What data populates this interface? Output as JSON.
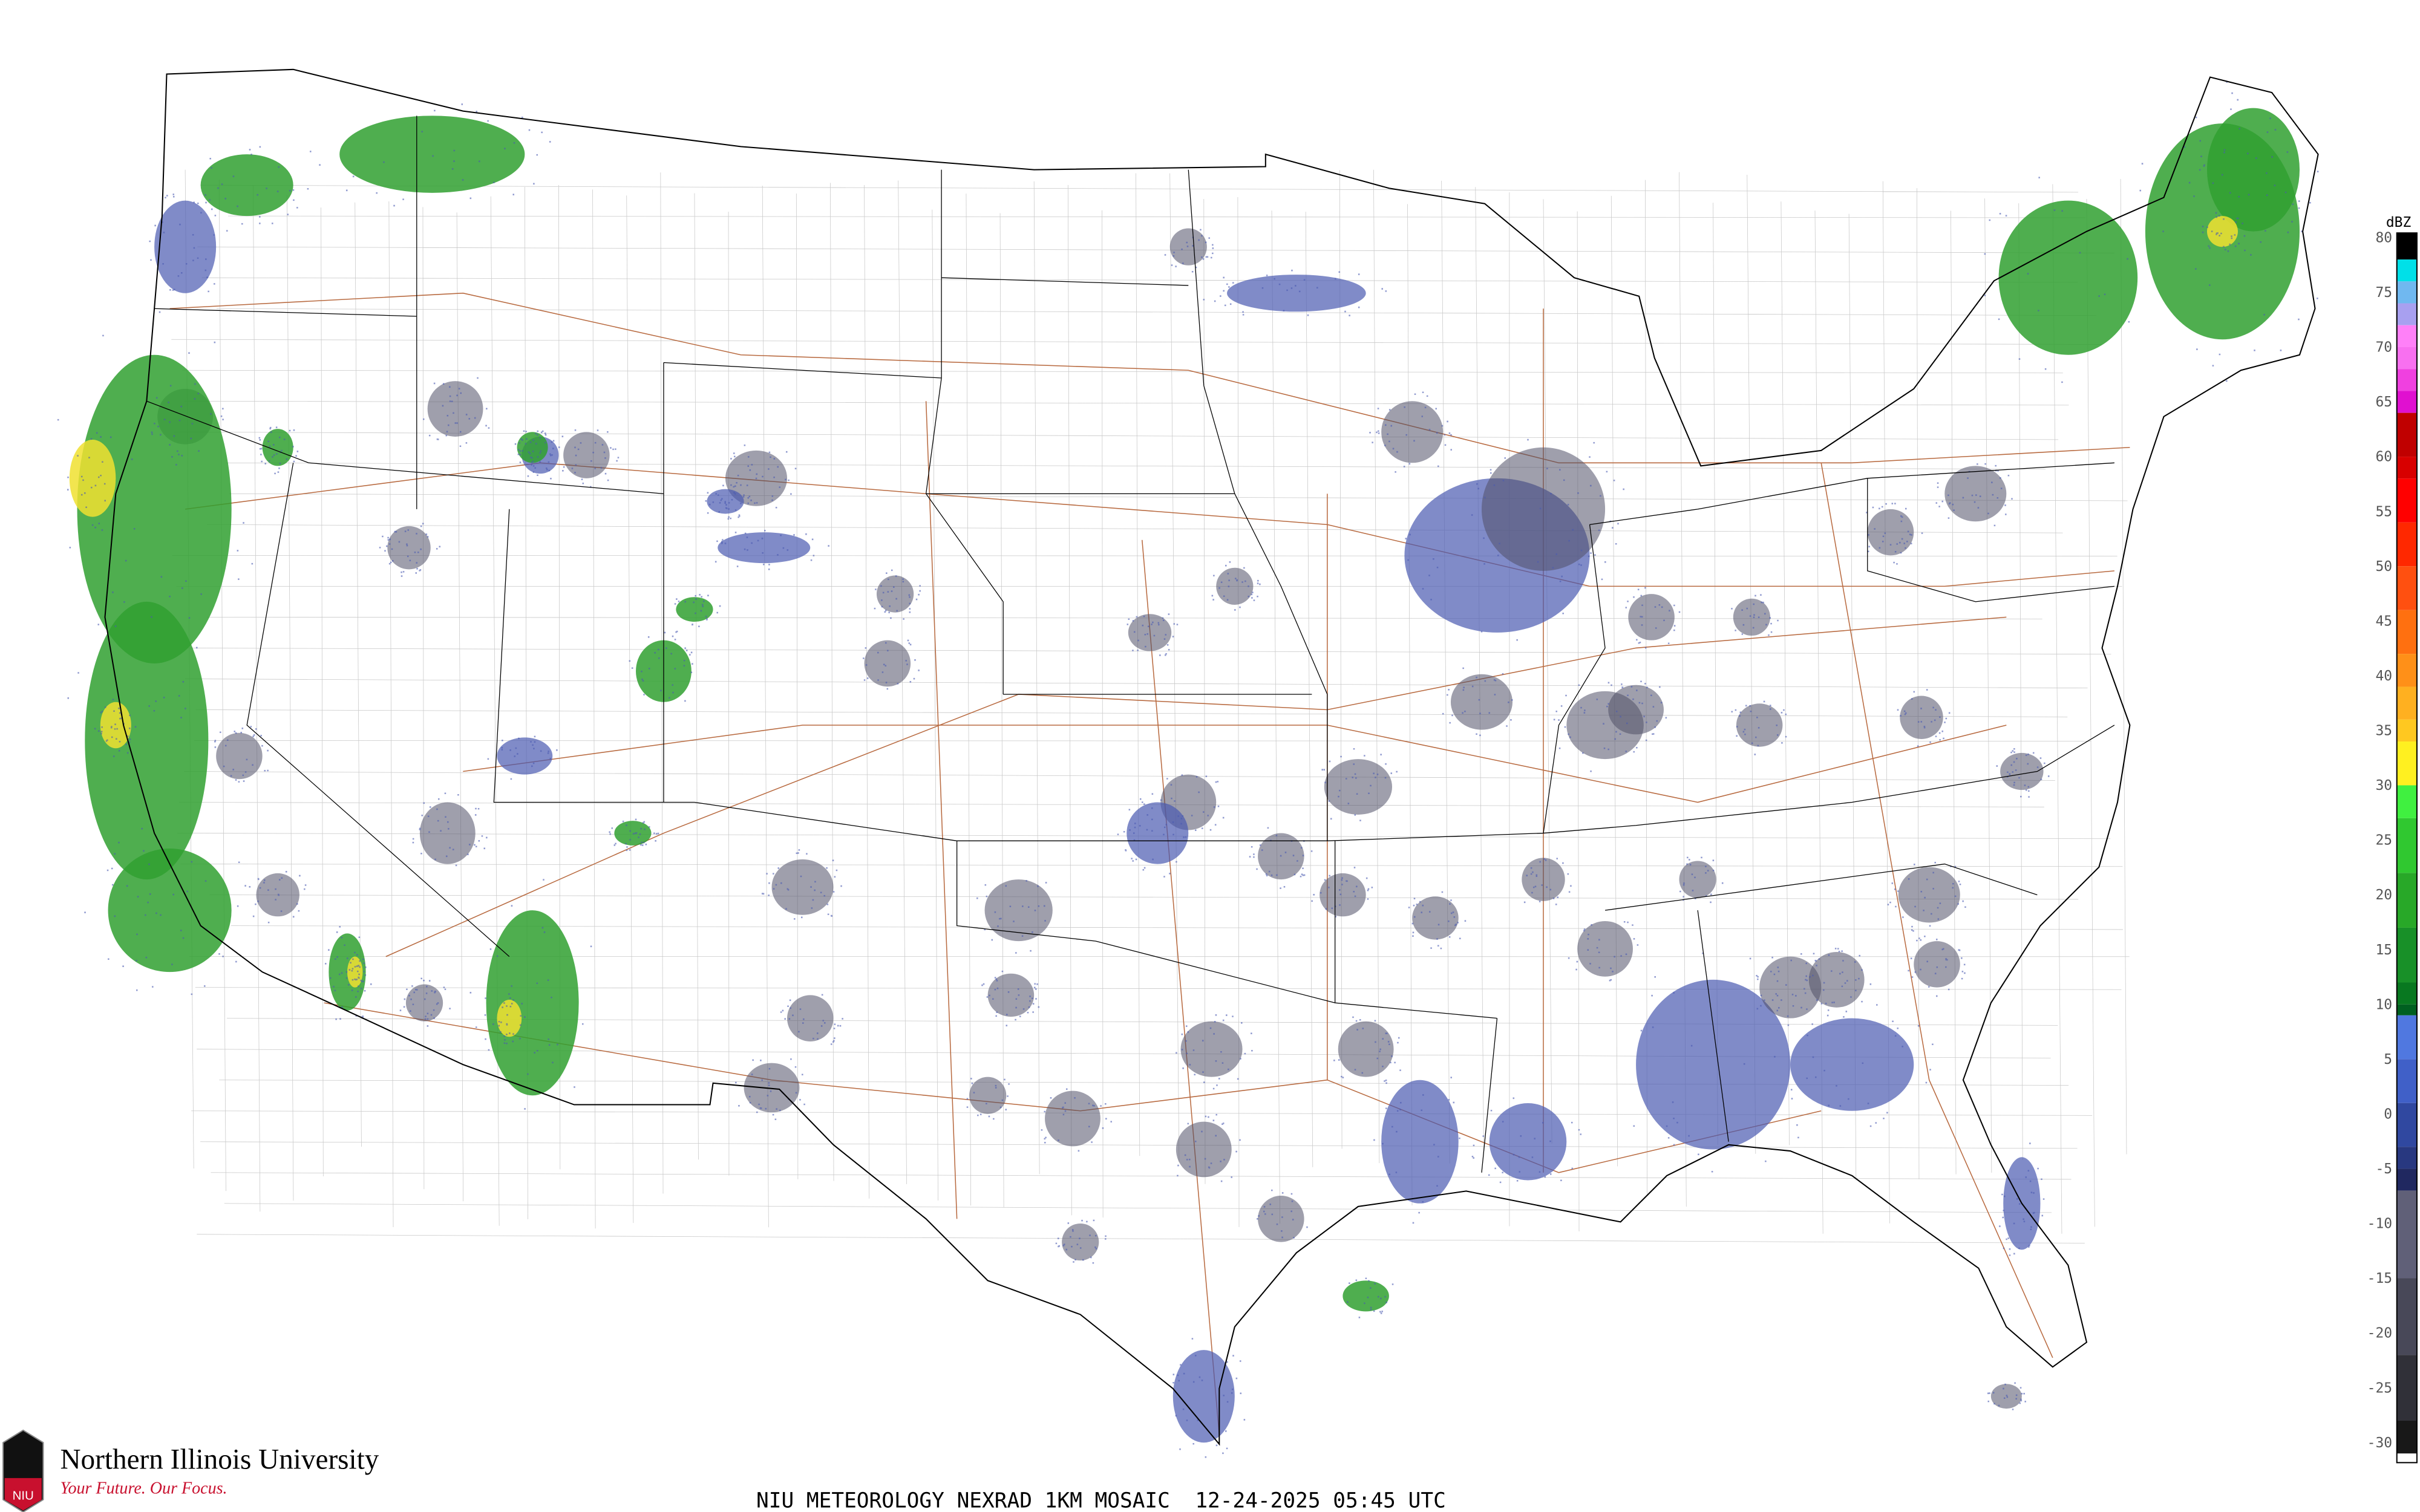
{
  "caption": "NIU METEOROLOGY NEXRAD 1KM MOSAIC  12-24-2025 05:45 UTC",
  "logo": {
    "name": "Northern Illinois University",
    "tagline": "Your Future. Our Focus.",
    "mark_text": "NIU",
    "brand_color": "#c8102e"
  },
  "legend": {
    "unit": "dBZ",
    "tick_labels": [
      "80",
      "75",
      "70",
      "65",
      "60",
      "55",
      "50",
      "45",
      "40",
      "35",
      "30",
      "25",
      "20",
      "15",
      "10",
      "5",
      "0",
      "-5",
      "-10",
      "-15",
      "-20",
      "-25",
      "-30"
    ],
    "color_scale": [
      {
        "dbz": 80,
        "color": "#000000"
      },
      {
        "dbz": 78,
        "color": "#00e0e8"
      },
      {
        "dbz": 76,
        "color": "#70b8f0"
      },
      {
        "dbz": 74,
        "color": "#a8a0f0"
      },
      {
        "dbz": 72,
        "color": "#ff80f8"
      },
      {
        "dbz": 70,
        "color": "#f870f0"
      },
      {
        "dbz": 68,
        "color": "#f040e0"
      },
      {
        "dbz": 66,
        "color": "#e010d0"
      },
      {
        "dbz": 64,
        "color": "#c00000"
      },
      {
        "dbz": 60,
        "color": "#d80000"
      },
      {
        "dbz": 58,
        "color": "#ff0000"
      },
      {
        "dbz": 54,
        "color": "#ff2800"
      },
      {
        "dbz": 50,
        "color": "#ff5010"
      },
      {
        "dbz": 46,
        "color": "#ff7010"
      },
      {
        "dbz": 42,
        "color": "#ff9018"
      },
      {
        "dbz": 39,
        "color": "#ffb020"
      },
      {
        "dbz": 36,
        "color": "#ffc820"
      },
      {
        "dbz": 34,
        "color": "#fff020"
      },
      {
        "dbz": 30,
        "color": "#40f040"
      },
      {
        "dbz": 27,
        "color": "#30c830"
      },
      {
        "dbz": 22,
        "color": "#28a828"
      },
      {
        "dbz": 17,
        "color": "#189028"
      },
      {
        "dbz": 12,
        "color": "#087820"
      },
      {
        "dbz": 10,
        "color": "#006020"
      },
      {
        "dbz": 9,
        "color": "#5078e0"
      },
      {
        "dbz": 5,
        "color": "#4060c8"
      },
      {
        "dbz": 1,
        "color": "#3048a0"
      },
      {
        "dbz": -3,
        "color": "#283880"
      },
      {
        "dbz": -5,
        "color": "#202860"
      },
      {
        "dbz": -7,
        "color": "#606078"
      },
      {
        "dbz": -15,
        "color": "#484858"
      },
      {
        "dbz": -22,
        "color": "#303038"
      },
      {
        "dbz": -28,
        "color": "#181818"
      },
      {
        "dbz": -31,
        "color": "#ffffff"
      }
    ]
  },
  "map_colors": {
    "boundary": "#000000",
    "county": "#c8c8c8",
    "highway": "#b86a40",
    "light_echo": "#4a5ab0",
    "clear_air": "#505068",
    "moderate_echo": "#30a030",
    "heavy_echo": "#f0e030"
  }
}
